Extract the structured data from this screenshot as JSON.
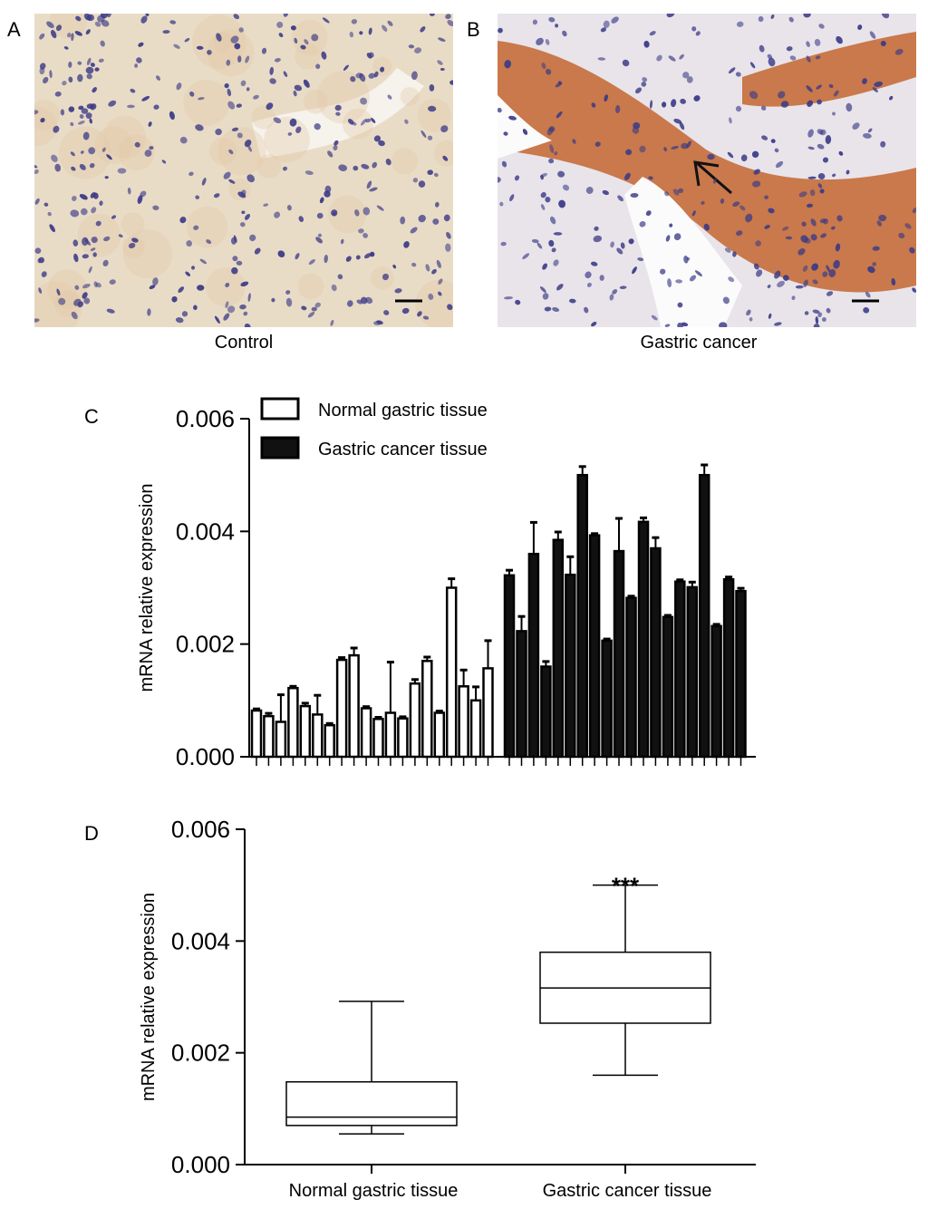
{
  "panels": {
    "a": {
      "letter": "A",
      "caption": "Control"
    },
    "b": {
      "letter": "B",
      "caption": "Gastric cancer"
    },
    "c": {
      "letter": "C"
    },
    "d": {
      "letter": "D"
    }
  },
  "colors": {
    "normal_fill": "#ffffff",
    "cancer_fill": "#111111",
    "stroke": "#000000",
    "control_stain_bg": "#e9dcc7",
    "cancer_stain_bg": "#c9794b",
    "nucleus": "#3b3a86",
    "stroma": "#e8e4ea"
  },
  "chart_data": [
    {
      "type": "bar",
      "title": "",
      "xlabel": "",
      "ylabel": "mRNA relative expression",
      "ylim": [
        0,
        0.006
      ],
      "yticks": [
        "0.000",
        "0.002",
        "0.004",
        "0.006"
      ],
      "legend_position": "top-left",
      "grid": false,
      "series": [
        {
          "name": "Normal gastric tissue",
          "values": [
            0.00082,
            0.00072,
            0.00062,
            0.00122,
            0.0009,
            0.00075,
            0.00056,
            0.00172,
            0.0018,
            0.00086,
            0.00067,
            0.00078,
            0.00068,
            0.0013,
            0.0017,
            0.00078,
            0.003,
            0.00125,
            0.001,
            0.00157
          ],
          "errors": [
            3e-05,
            5e-05,
            0.00048,
            3e-05,
            5e-05,
            0.00034,
            3e-05,
            4e-05,
            0.00013,
            3e-05,
            3e-05,
            0.0009,
            3e-05,
            7e-05,
            7e-05,
            3e-05,
            0.00016,
            0.00029,
            0.00024,
            0.00049
          ]
        },
        {
          "name": "Gastric cancer tissue",
          "values": [
            0.00322,
            0.00223,
            0.0036,
            0.0016,
            0.00385,
            0.00323,
            0.005,
            0.00393,
            0.00206,
            0.00365,
            0.00282,
            0.00417,
            0.0037,
            0.00248,
            0.00311,
            0.00301,
            0.005,
            0.00232,
            0.00315,
            0.00294
          ],
          "errors": [
            9e-05,
            0.00026,
            0.00056,
            9e-05,
            0.00014,
            0.00032,
            0.00015,
            3e-05,
            3e-05,
            0.00058,
            3e-05,
            7e-05,
            0.00019,
            3e-05,
            3e-05,
            9e-05,
            0.00018,
            3e-05,
            4e-05,
            5e-05
          ]
        }
      ]
    },
    {
      "type": "box",
      "title": "",
      "xlabel": "",
      "ylabel": "mRNA relative expression",
      "ylim": [
        0,
        0.006
      ],
      "yticks": [
        "0.000",
        "0.002",
        "0.004",
        "0.006"
      ],
      "categories": [
        "Normal gastric tissue",
        "Gastric cancer tissue"
      ],
      "boxes": [
        {
          "min": 0.00055,
          "q1": 0.0007,
          "median": 0.00085,
          "q3": 0.00148,
          "max": 0.00292
        },
        {
          "min": 0.0016,
          "q1": 0.00253,
          "median": 0.00316,
          "q3": 0.0038,
          "max": 0.005
        }
      ],
      "annotation": "***"
    }
  ]
}
